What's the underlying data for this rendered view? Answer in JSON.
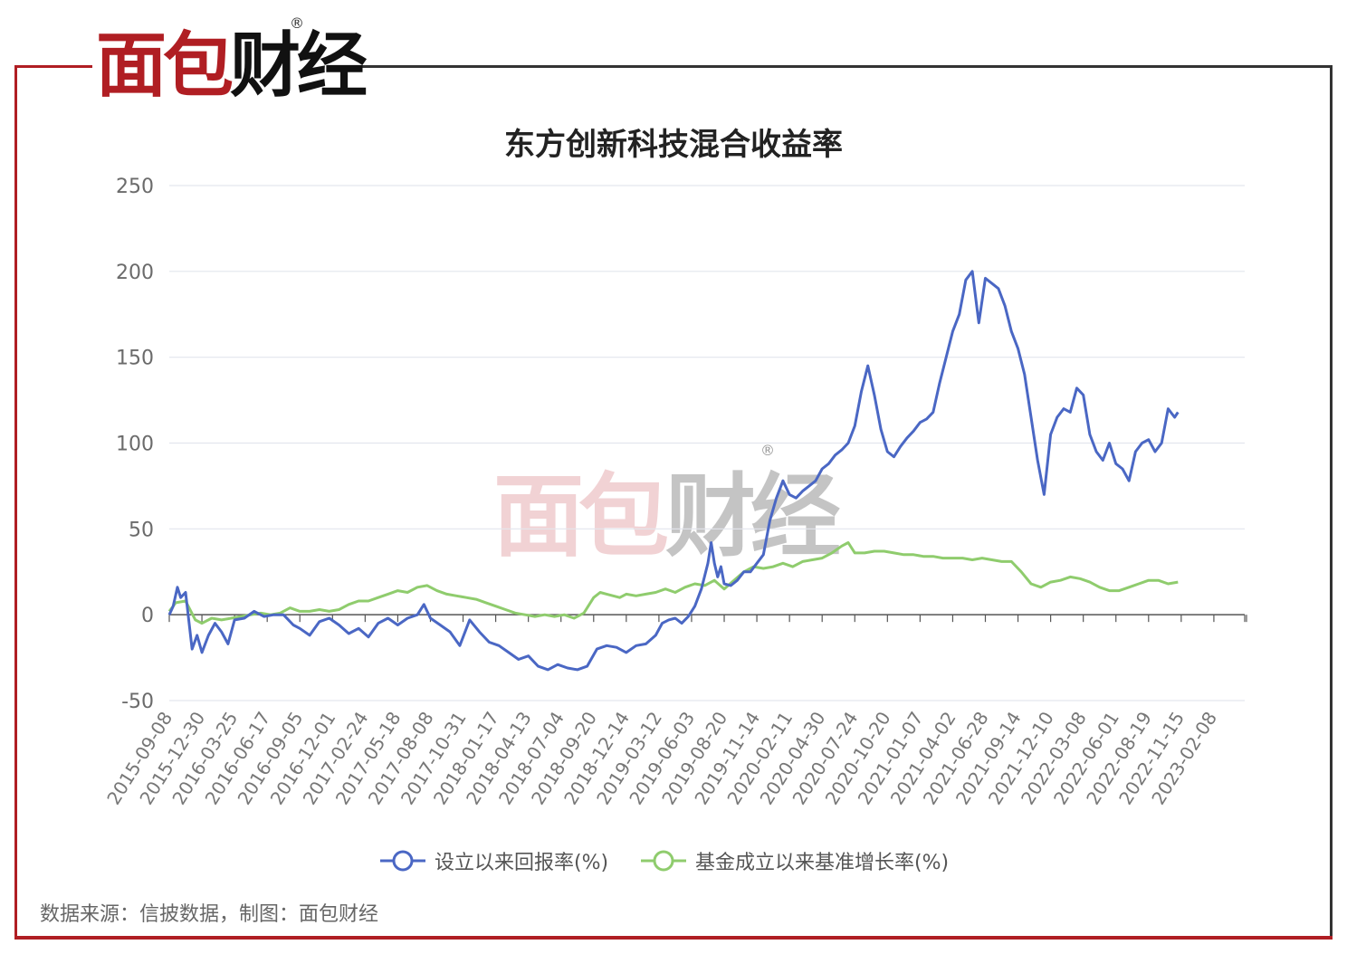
{
  "brand": {
    "logo_part1": "面包",
    "logo_part2": "财经",
    "registered_mark": "®",
    "red": "#b01e23",
    "black": "#111111"
  },
  "chart_data": {
    "type": "line",
    "title": "东方创新科技混合收益率",
    "ylim": [
      -50,
      250
    ],
    "yticks": [
      "250",
      "200",
      "150",
      "100",
      "50",
      "0",
      "-50"
    ],
    "xtick_labels": [
      "2015-09-08",
      "2015-12-30",
      "2016-03-25",
      "2016-06-17",
      "2016-09-05",
      "2016-12-01",
      "2017-02-24",
      "2017-05-18",
      "2017-08-08",
      "2017-10-31",
      "2018-01-17",
      "2018-04-13",
      "2018-07-04",
      "2018-09-20",
      "2018-12-14",
      "2019-03-12",
      "2019-06-03",
      "2019-08-20",
      "2019-11-14",
      "2020-02-11",
      "2020-04-30",
      "2020-07-24",
      "2020-10-20",
      "2021-01-07",
      "2021-04-02",
      "2021-06-28",
      "2021-09-14",
      "2021-12-10",
      "2022-03-08",
      "2022-06-01",
      "2022-08-19",
      "2022-11-15",
      "2023-02-08"
    ],
    "grid": "horizontal",
    "legend_position": "bottom",
    "series": [
      {
        "name": "设立以来回报率(%)",
        "color": "#4a67c4",
        "points": [
          [
            0,
            0
          ],
          [
            0.12,
            5
          ],
          [
            0.25,
            16
          ],
          [
            0.35,
            10
          ],
          [
            0.5,
            13
          ],
          [
            0.7,
            -20
          ],
          [
            0.85,
            -12
          ],
          [
            1.0,
            -22
          ],
          [
            1.2,
            -12
          ],
          [
            1.4,
            -5
          ],
          [
            1.6,
            -10
          ],
          [
            1.8,
            -17
          ],
          [
            2.0,
            -3
          ],
          [
            2.3,
            -2
          ],
          [
            2.6,
            2
          ],
          [
            2.9,
            -1
          ],
          [
            3.2,
            0
          ],
          [
            3.5,
            0
          ],
          [
            3.8,
            -6
          ],
          [
            4.0,
            -8
          ],
          [
            4.3,
            -12
          ],
          [
            4.6,
            -4
          ],
          [
            4.9,
            -2
          ],
          [
            5.2,
            -6
          ],
          [
            5.5,
            -11
          ],
          [
            5.8,
            -8
          ],
          [
            6.1,
            -13
          ],
          [
            6.4,
            -5
          ],
          [
            6.7,
            -2
          ],
          [
            7.0,
            -6
          ],
          [
            7.3,
            -2
          ],
          [
            7.6,
            0
          ],
          [
            7.8,
            6
          ],
          [
            8.0,
            -2
          ],
          [
            8.3,
            -6
          ],
          [
            8.6,
            -10
          ],
          [
            8.9,
            -18
          ],
          [
            9.2,
            -3
          ],
          [
            9.5,
            -10
          ],
          [
            9.8,
            -16
          ],
          [
            10.1,
            -18
          ],
          [
            10.4,
            -22
          ],
          [
            10.7,
            -26
          ],
          [
            11.0,
            -24
          ],
          [
            11.3,
            -30
          ],
          [
            11.6,
            -32
          ],
          [
            11.9,
            -29
          ],
          [
            12.2,
            -31
          ],
          [
            12.5,
            -32
          ],
          [
            12.8,
            -30
          ],
          [
            13.1,
            -20
          ],
          [
            13.4,
            -18
          ],
          [
            13.7,
            -19
          ],
          [
            14.0,
            -22
          ],
          [
            14.3,
            -18
          ],
          [
            14.6,
            -17
          ],
          [
            14.9,
            -12
          ],
          [
            15.1,
            -5
          ],
          [
            15.3,
            -3
          ],
          [
            15.5,
            -2
          ],
          [
            15.7,
            -5
          ],
          [
            15.9,
            -1
          ],
          [
            16.1,
            5
          ],
          [
            16.3,
            15
          ],
          [
            16.5,
            30
          ],
          [
            16.6,
            42
          ],
          [
            16.7,
            30
          ],
          [
            16.8,
            22
          ],
          [
            16.9,
            28
          ],
          [
            17.0,
            18
          ],
          [
            17.2,
            17
          ],
          [
            17.4,
            20
          ],
          [
            17.6,
            25
          ],
          [
            17.8,
            25
          ],
          [
            18.0,
            30
          ],
          [
            18.2,
            35
          ],
          [
            18.4,
            55
          ],
          [
            18.6,
            68
          ],
          [
            18.8,
            78
          ],
          [
            19.0,
            70
          ],
          [
            19.2,
            68
          ],
          [
            19.4,
            72
          ],
          [
            19.6,
            75
          ],
          [
            19.8,
            78
          ],
          [
            20.0,
            85
          ],
          [
            20.2,
            88
          ],
          [
            20.4,
            93
          ],
          [
            20.6,
            96
          ],
          [
            20.8,
            100
          ],
          [
            21.0,
            110
          ],
          [
            21.2,
            130
          ],
          [
            21.4,
            145
          ],
          [
            21.6,
            128
          ],
          [
            21.8,
            108
          ],
          [
            22.0,
            95
          ],
          [
            22.2,
            92
          ],
          [
            22.4,
            98
          ],
          [
            22.6,
            103
          ],
          [
            22.8,
            107
          ],
          [
            23.0,
            112
          ],
          [
            23.2,
            114
          ],
          [
            23.4,
            118
          ],
          [
            23.6,
            135
          ],
          [
            23.8,
            150
          ],
          [
            24.0,
            165
          ],
          [
            24.2,
            175
          ],
          [
            24.4,
            195
          ],
          [
            24.6,
            200
          ],
          [
            24.8,
            170
          ],
          [
            25.0,
            196
          ],
          [
            25.2,
            193
          ],
          [
            25.4,
            190
          ],
          [
            25.6,
            180
          ],
          [
            25.8,
            165
          ],
          [
            26.0,
            155
          ],
          [
            26.2,
            140
          ],
          [
            26.4,
            115
          ],
          [
            26.6,
            90
          ],
          [
            26.8,
            70
          ],
          [
            27.0,
            105
          ],
          [
            27.2,
            115
          ],
          [
            27.4,
            120
          ],
          [
            27.6,
            118
          ],
          [
            27.8,
            132
          ],
          [
            28.0,
            128
          ],
          [
            28.2,
            105
          ],
          [
            28.4,
            95
          ],
          [
            28.6,
            90
          ],
          [
            28.8,
            100
          ],
          [
            29.0,
            88
          ],
          [
            29.2,
            85
          ],
          [
            29.4,
            78
          ],
          [
            29.6,
            95
          ],
          [
            29.8,
            100
          ],
          [
            30.0,
            102
          ],
          [
            30.2,
            95
          ],
          [
            30.4,
            100
          ],
          [
            30.6,
            120
          ],
          [
            30.8,
            115
          ],
          [
            30.9,
            118
          ]
        ]
      },
      {
        "name": "基金成立以来基准增长率(%)",
        "color": "#8fcc6d",
        "points": [
          [
            0,
            2
          ],
          [
            0.2,
            7
          ],
          [
            0.5,
            8
          ],
          [
            0.8,
            -3
          ],
          [
            1.0,
            -5
          ],
          [
            1.3,
            -2
          ],
          [
            1.6,
            -3
          ],
          [
            1.9,
            -2
          ],
          [
            2.2,
            -1
          ],
          [
            2.5,
            0
          ],
          [
            2.8,
            1
          ],
          [
            3.1,
            0
          ],
          [
            3.4,
            1
          ],
          [
            3.7,
            4
          ],
          [
            4.0,
            2
          ],
          [
            4.3,
            2
          ],
          [
            4.6,
            3
          ],
          [
            4.9,
            2
          ],
          [
            5.2,
            3
          ],
          [
            5.5,
            6
          ],
          [
            5.8,
            8
          ],
          [
            6.1,
            8
          ],
          [
            6.4,
            10
          ],
          [
            6.7,
            12
          ],
          [
            7.0,
            14
          ],
          [
            7.3,
            13
          ],
          [
            7.6,
            16
          ],
          [
            7.9,
            17
          ],
          [
            8.2,
            14
          ],
          [
            8.5,
            12
          ],
          [
            8.8,
            11
          ],
          [
            9.1,
            10
          ],
          [
            9.4,
            9
          ],
          [
            9.7,
            7
          ],
          [
            10.0,
            5
          ],
          [
            10.3,
            3
          ],
          [
            10.6,
            1
          ],
          [
            10.9,
            0
          ],
          [
            11.2,
            -1
          ],
          [
            11.5,
            0
          ],
          [
            11.8,
            -1
          ],
          [
            12.1,
            0
          ],
          [
            12.4,
            -2
          ],
          [
            12.7,
            1
          ],
          [
            13.0,
            10
          ],
          [
            13.2,
            13
          ],
          [
            13.4,
            12
          ],
          [
            13.6,
            11
          ],
          [
            13.8,
            10
          ],
          [
            14.0,
            12
          ],
          [
            14.3,
            11
          ],
          [
            14.6,
            12
          ],
          [
            14.9,
            13
          ],
          [
            15.2,
            15
          ],
          [
            15.5,
            13
          ],
          [
            15.8,
            16
          ],
          [
            16.1,
            18
          ],
          [
            16.4,
            17
          ],
          [
            16.7,
            20
          ],
          [
            17.0,
            15
          ],
          [
            17.3,
            20
          ],
          [
            17.6,
            25
          ],
          [
            17.9,
            28
          ],
          [
            18.2,
            27
          ],
          [
            18.5,
            28
          ],
          [
            18.8,
            30
          ],
          [
            19.1,
            28
          ],
          [
            19.4,
            31
          ],
          [
            19.7,
            32
          ],
          [
            20.0,
            33
          ],
          [
            20.3,
            36
          ],
          [
            20.6,
            40
          ],
          [
            20.8,
            42
          ],
          [
            21.0,
            36
          ],
          [
            21.3,
            36
          ],
          [
            21.6,
            37
          ],
          [
            21.9,
            37
          ],
          [
            22.2,
            36
          ],
          [
            22.5,
            35
          ],
          [
            22.8,
            35
          ],
          [
            23.1,
            34
          ],
          [
            23.4,
            34
          ],
          [
            23.7,
            33
          ],
          [
            24.0,
            33
          ],
          [
            24.3,
            33
          ],
          [
            24.6,
            32
          ],
          [
            24.9,
            33
          ],
          [
            25.2,
            32
          ],
          [
            25.5,
            31
          ],
          [
            25.8,
            31
          ],
          [
            26.1,
            25
          ],
          [
            26.4,
            18
          ],
          [
            26.7,
            16
          ],
          [
            27.0,
            19
          ],
          [
            27.3,
            20
          ],
          [
            27.6,
            22
          ],
          [
            27.9,
            21
          ],
          [
            28.2,
            19
          ],
          [
            28.5,
            16
          ],
          [
            28.8,
            14
          ],
          [
            29.1,
            14
          ],
          [
            29.4,
            16
          ],
          [
            29.7,
            18
          ],
          [
            30.0,
            20
          ],
          [
            30.3,
            20
          ],
          [
            30.6,
            18
          ],
          [
            30.9,
            19
          ]
        ]
      }
    ]
  },
  "source_text": "数据来源：信披数据，制图：面包财经"
}
